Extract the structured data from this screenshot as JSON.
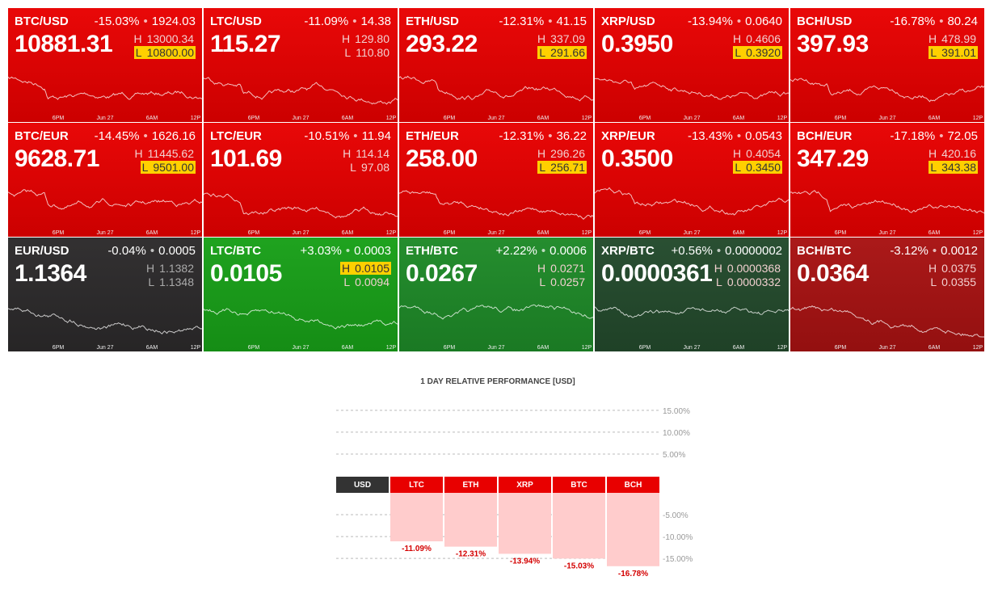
{
  "high_label": "H",
  "low_label": "L",
  "spark_axis": [
    "6PM",
    "Jun 27",
    "6AM",
    "12P"
  ],
  "tiles": [
    {
      "pair": "BTC/USD",
      "change": "-15.03%",
      "change_abs": "1924.03",
      "price": "10881.31",
      "high": "13000.34",
      "low": "10800.00",
      "highlight": "low",
      "color": "#e80000"
    },
    {
      "pair": "LTC/USD",
      "change": "-11.09%",
      "change_abs": "14.38",
      "price": "115.27",
      "high": "129.80",
      "low": "110.80",
      "color": "#e80000"
    },
    {
      "pair": "ETH/USD",
      "change": "-12.31%",
      "change_abs": "41.15",
      "price": "293.22",
      "high": "337.09",
      "low": "291.66",
      "highlight": "low",
      "color": "#e80000"
    },
    {
      "pair": "XRP/USD",
      "change": "-13.94%",
      "change_abs": "0.0640",
      "price": "0.3950",
      "high": "0.4606",
      "low": "0.3920",
      "highlight": "low",
      "color": "#e80000"
    },
    {
      "pair": "BCH/USD",
      "change": "-16.78%",
      "change_abs": "80.24",
      "price": "397.93",
      "high": "478.99",
      "low": "391.01",
      "highlight": "low",
      "color": "#e80000"
    },
    {
      "pair": "BTC/EUR",
      "change": "-14.45%",
      "change_abs": "1626.16",
      "price": "9628.71",
      "high": "11445.62",
      "low": "9501.00",
      "highlight": "low",
      "color": "#e80000"
    },
    {
      "pair": "LTC/EUR",
      "change": "-10.51%",
      "change_abs": "11.94",
      "price": "101.69",
      "high": "114.14",
      "low": "97.08",
      "color": "#e80000"
    },
    {
      "pair": "ETH/EUR",
      "change": "-12.31%",
      "change_abs": "36.22",
      "price": "258.00",
      "high": "296.26",
      "low": "256.71",
      "highlight": "low",
      "color": "#e80000"
    },
    {
      "pair": "XRP/EUR",
      "change": "-13.43%",
      "change_abs": "0.0543",
      "price": "0.3500",
      "high": "0.4054",
      "low": "0.3450",
      "highlight": "low",
      "color": "#e80000"
    },
    {
      "pair": "BCH/EUR",
      "change": "-17.18%",
      "change_abs": "72.05",
      "price": "347.29",
      "high": "420.16",
      "low": "343.38",
      "highlight": "low",
      "color": "#e80000"
    },
    {
      "pair": "EUR/USD",
      "change": "-0.04%",
      "change_abs": "0.0005",
      "price": "1.1364",
      "high": "1.1382",
      "low": "1.1348",
      "color": "#2c2a2b"
    },
    {
      "pair": "LTC/BTC",
      "change": "+3.03%",
      "change_abs": "0.0003",
      "price": "0.0105",
      "high": "0.0105",
      "low": "0.0094",
      "highlight": "high",
      "color": "#18a018"
    },
    {
      "pair": "ETH/BTC",
      "change": "+2.22%",
      "change_abs": "0.0006",
      "price": "0.0267",
      "high": "0.0271",
      "low": "0.0257",
      "color": "#1e8a28"
    },
    {
      "pair": "XRP/BTC",
      "change": "+0.56%",
      "change_abs": "0.0000002",
      "price": "0.0000361",
      "high": "0.0000368",
      "low": "0.0000332",
      "color": "#234a2c"
    },
    {
      "pair": "BCH/BTC",
      "change": "-3.12%",
      "change_abs": "0.0012",
      "price": "0.0364",
      "high": "0.0375",
      "low": "0.0355",
      "color": "#a81212"
    }
  ],
  "chart_data": {
    "type": "bar",
    "title": "1 DAY RELATIVE PERFORMANCE  [USD]",
    "categories": [
      "USD",
      "LTC",
      "ETH",
      "XRP",
      "BTC",
      "BCH"
    ],
    "category_colors": [
      "#333333",
      "#e80000",
      "#e80000",
      "#e80000",
      "#e80000",
      "#e80000"
    ],
    "values": [
      null,
      -11.09,
      -12.31,
      -13.94,
      -15.03,
      -16.78
    ],
    "value_labels": [
      null,
      "-11.09%",
      "-12.31%",
      "-13.94%",
      "-15.03%",
      "-16.78%"
    ],
    "color": "#ffcccc",
    "label_color": "#d40000",
    "ylim": [
      -17,
      17
    ],
    "yticks": [
      {
        "value": 15,
        "label": "15.00%"
      },
      {
        "value": 10,
        "label": "10.00%"
      },
      {
        "value": 5,
        "label": "5.00%"
      },
      {
        "value": -5,
        "label": "-5.00%"
      },
      {
        "value": -10,
        "label": "-10.00%"
      },
      {
        "value": -15,
        "label": "-15.00%"
      }
    ],
    "grid": true
  }
}
